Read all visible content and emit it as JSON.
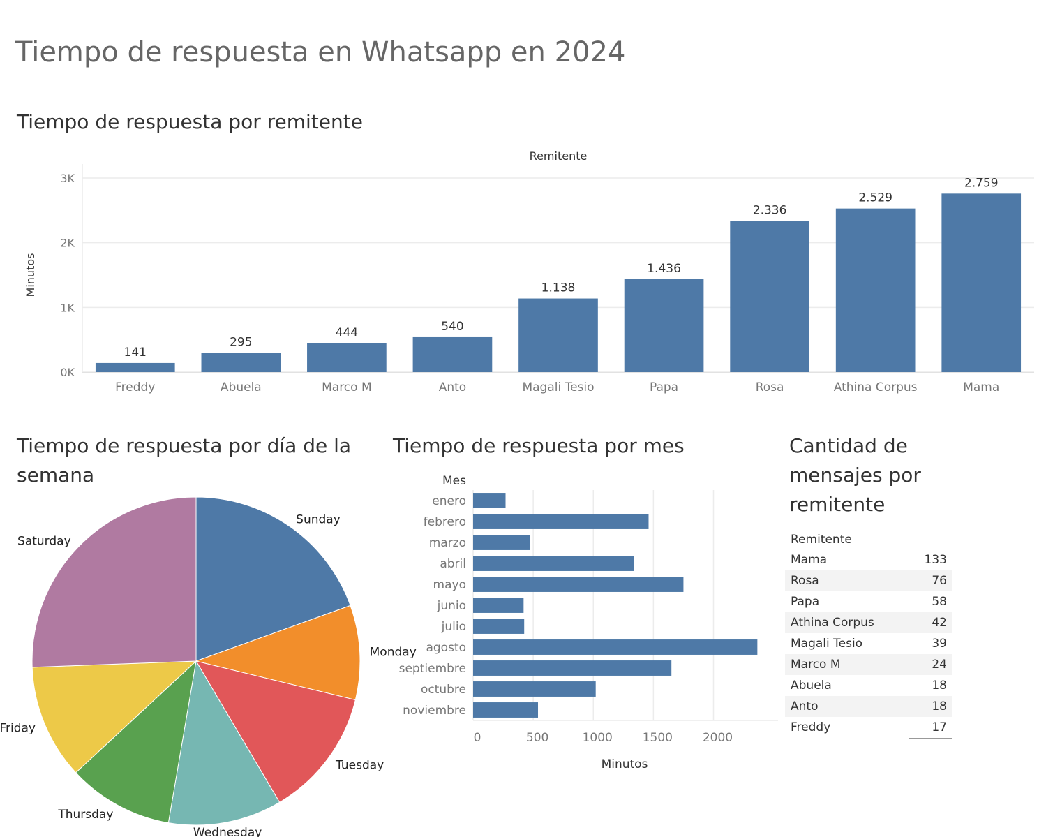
{
  "dashboard": {
    "title": "Tiempo de respuesta en Whatsapp en 2024"
  },
  "colors": {
    "bar": "#4e79a7",
    "grid": "#ececec",
    "axis_text": "#777777"
  },
  "chart_data": [
    {
      "id": "por-remitente",
      "type": "bar",
      "title": "Tiempo de respuesta por remitente",
      "header": "Remitente",
      "ylabel": "Minutos",
      "categories": [
        "Freddy",
        "Abuela",
        "Marco M",
        "Anto",
        "Magali Tesio",
        "Papa",
        "Rosa",
        "Athina Corpus",
        "Mama"
      ],
      "values": [
        141,
        295,
        444,
        540,
        1138,
        1436,
        2336,
        2529,
        2759
      ],
      "value_labels": [
        "141",
        "295",
        "444",
        "540",
        "1.138",
        "1.436",
        "2.336",
        "2.529",
        "2.759"
      ],
      "ylim": [
        0,
        3000
      ],
      "yticks": [
        0,
        1000,
        2000,
        3000
      ],
      "ytick_labels": [
        "0K",
        "1K",
        "2K",
        "3K"
      ],
      "grid": true
    },
    {
      "id": "por-dia",
      "type": "pie",
      "title": "Tiempo de respuesta por día de la semana",
      "labels": [
        "Sunday",
        "Monday",
        "Tuesday",
        "Wednesday",
        "Thursday",
        "Friday",
        "Saturday"
      ],
      "values": [
        19.5,
        9.3,
        12.7,
        11.2,
        10.4,
        11.3,
        25.6
      ],
      "colors": [
        "#4e79a7",
        "#f28e2b",
        "#e15759",
        "#76b7b2",
        "#59a14f",
        "#edc948",
        "#b07aa1"
      ]
    },
    {
      "id": "por-mes",
      "type": "bar",
      "orientation": "horizontal",
      "title": "Tiempo de respuesta por mes",
      "header": "Mes",
      "xlabel": "Minutos",
      "categories": [
        "enero",
        "febrero",
        "marzo",
        "abril",
        "mayo",
        "junio",
        "julio",
        "agosto",
        "septiembre",
        "octubre",
        "noviembre"
      ],
      "values": [
        270,
        1460,
        475,
        1340,
        1750,
        420,
        425,
        2365,
        1650,
        1020,
        540
      ],
      "xlim": [
        0,
        2450
      ],
      "xticks": [
        0,
        500,
        1000,
        1500,
        2000
      ],
      "grid": true
    }
  ],
  "table": {
    "title": "Cantidad de mensajes por remitente",
    "header": "Remitente",
    "rows": [
      {
        "name": "Mama",
        "count": "133"
      },
      {
        "name": "Rosa",
        "count": "76"
      },
      {
        "name": "Papa",
        "count": "58"
      },
      {
        "name": "Athina Corpus",
        "count": "42"
      },
      {
        "name": "Magali Tesio",
        "count": "39"
      },
      {
        "name": "Marco M",
        "count": "24"
      },
      {
        "name": "Abuela",
        "count": "18"
      },
      {
        "name": "Anto",
        "count": "18"
      },
      {
        "name": "Freddy",
        "count": "17"
      }
    ]
  }
}
